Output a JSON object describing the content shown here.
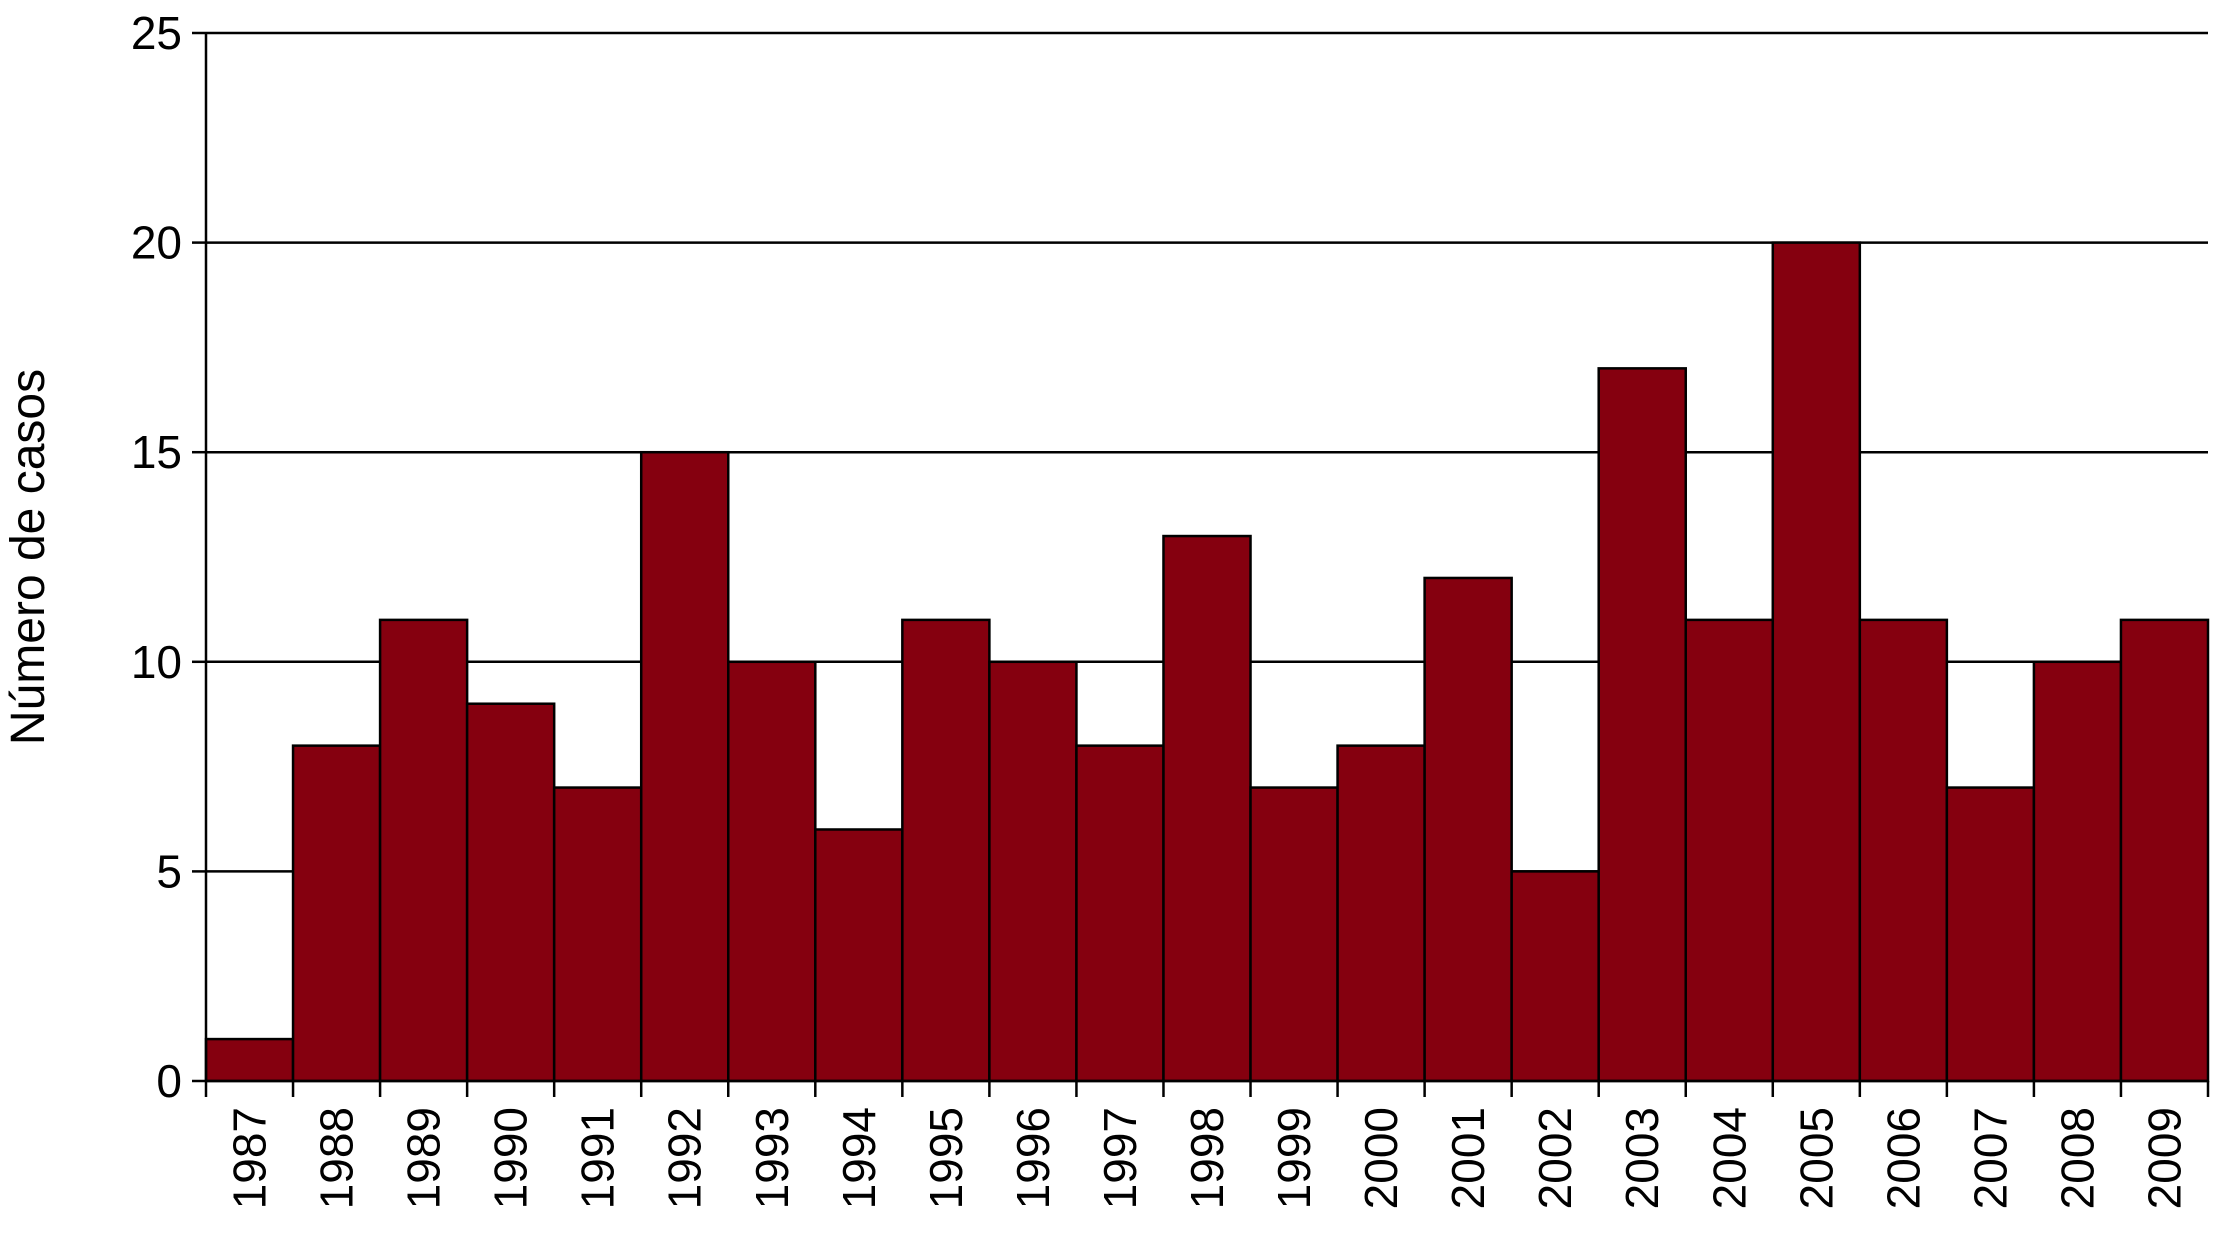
{
  "chart_data": {
    "type": "bar",
    "title": "",
    "xlabel": "",
    "ylabel": "Número de casos",
    "ylim": [
      0,
      25
    ],
    "yticks": [
      0,
      5,
      10,
      15,
      20,
      25
    ],
    "grid": "horizontal",
    "categories": [
      "1987",
      "1988",
      "1989",
      "1990",
      "1991",
      "1992",
      "1993",
      "1994",
      "1995",
      "1996",
      "1997",
      "1998",
      "1999",
      "2000",
      "2001",
      "2002",
      "2003",
      "2004",
      "2005",
      "2006",
      "2007",
      "2008",
      "2009"
    ],
    "values": [
      1,
      8,
      11,
      9,
      7,
      15,
      10,
      6,
      11,
      10,
      8,
      13,
      7,
      8,
      12,
      5,
      17,
      11,
      20,
      11,
      7,
      10,
      11
    ],
    "bar_color": "#85000f"
  }
}
